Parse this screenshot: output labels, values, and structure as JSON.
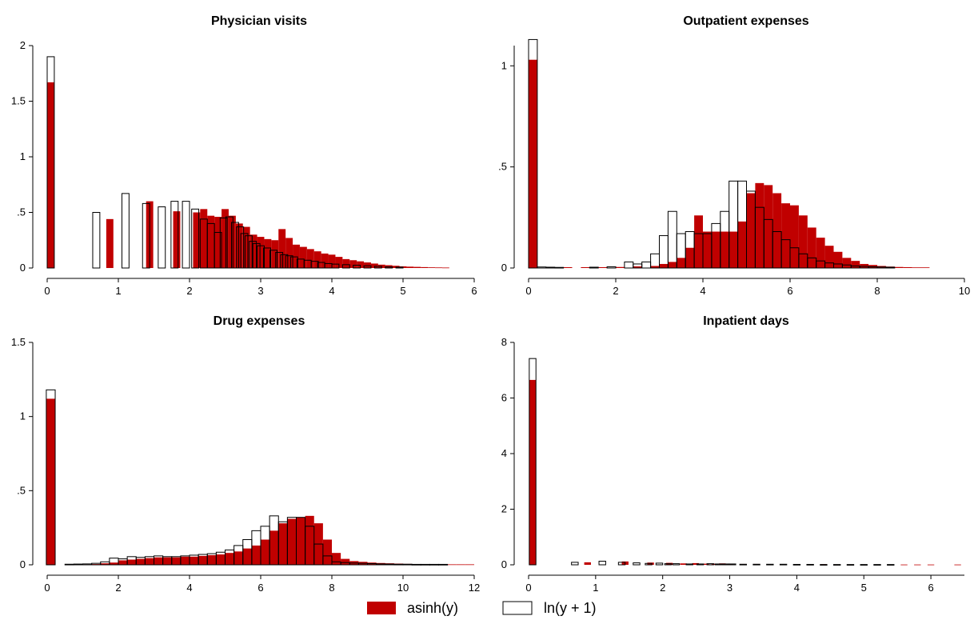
{
  "colors": {
    "asinh": "#c00000",
    "ln": "#ffffff",
    "outline": "#000000"
  },
  "legend": [
    {
      "key": "asinh",
      "label": "asinh(y)"
    },
    {
      "key": "ln",
      "label": "ln(y + 1)"
    }
  ],
  "chart_data": [
    {
      "type": "bar",
      "title": "Physician visits",
      "xlim": [
        0,
        6
      ],
      "ylim": [
        0,
        2
      ],
      "xticks": [
        0,
        1,
        2,
        3,
        4,
        5,
        6
      ],
      "yticks": [
        0,
        0.5,
        1,
        1.5,
        2
      ],
      "xtick_labels": [
        "0",
        "1",
        "2",
        "3",
        "4",
        "5",
        "6"
      ],
      "ytick_labels": [
        "0",
        ".5",
        "1",
        "1.5",
        "2"
      ],
      "series": [
        {
          "name": "asinh(y)",
          "bin_width": 0.1,
          "x": [
            0.05,
            0.88,
            1.44,
            1.82,
            2.1,
            2.2,
            2.3,
            2.4,
            2.5,
            2.6,
            2.7,
            2.8,
            2.9,
            3.0,
            3.1,
            3.2,
            3.3,
            3.4,
            3.5,
            3.6,
            3.7,
            3.8,
            3.9,
            4.0,
            4.1,
            4.2,
            4.3,
            4.4,
            4.5,
            4.6,
            4.7,
            4.8,
            4.9,
            5.0,
            5.1,
            5.2,
            5.3,
            5.4,
            5.5,
            5.6
          ],
          "y": [
            1.67,
            0.44,
            0.6,
            0.51,
            0.5,
            0.53,
            0.47,
            0.46,
            0.53,
            0.47,
            0.4,
            0.37,
            0.3,
            0.28,
            0.26,
            0.25,
            0.35,
            0.27,
            0.21,
            0.19,
            0.17,
            0.15,
            0.13,
            0.12,
            0.1,
            0.08,
            0.07,
            0.06,
            0.05,
            0.04,
            0.03,
            0.025,
            0.02,
            0.015,
            0.012,
            0.01,
            0.008,
            0.006,
            0.005,
            0.004
          ]
        },
        {
          "name": "ln(y + 1)",
          "bin_width": 0.1,
          "x": [
            0.05,
            0.69,
            1.1,
            1.39,
            1.61,
            1.79,
            1.95,
            2.08,
            2.2,
            2.3,
            2.4,
            2.48,
            2.56,
            2.64,
            2.71,
            2.77,
            2.83,
            2.89,
            2.94,
            3.0,
            3.09,
            3.18,
            3.26,
            3.33,
            3.4,
            3.47,
            3.56,
            3.66,
            3.76,
            3.85,
            3.95,
            4.05,
            4.2,
            4.35,
            4.5,
            4.65,
            4.8,
            4.95
          ],
          "y": [
            1.9,
            0.5,
            0.67,
            0.58,
            0.55,
            0.6,
            0.6,
            0.53,
            0.44,
            0.4,
            0.32,
            0.45,
            0.46,
            0.41,
            0.37,
            0.31,
            0.29,
            0.24,
            0.22,
            0.2,
            0.18,
            0.16,
            0.14,
            0.12,
            0.11,
            0.1,
            0.08,
            0.07,
            0.06,
            0.05,
            0.04,
            0.035,
            0.03,
            0.025,
            0.02,
            0.015,
            0.01,
            0.008
          ]
        }
      ]
    },
    {
      "type": "bar",
      "title": "Outpatient expenses",
      "xlim": [
        0,
        10
      ],
      "ylim": [
        0,
        1.1
      ],
      "xticks": [
        0,
        2,
        4,
        6,
        8,
        10
      ],
      "yticks": [
        0,
        0.5,
        1
      ],
      "xtick_labels": [
        "0",
        "2",
        "4",
        "6",
        "8",
        "10"
      ],
      "ytick_labels": [
        "0",
        ".5",
        "1"
      ],
      "series": [
        {
          "name": "asinh(y)",
          "bin_width": 0.2,
          "x": [
            0.1,
            0.5,
            0.9,
            1.3,
            1.7,
            2.1,
            2.5,
            2.9,
            3.1,
            3.3,
            3.5,
            3.7,
            3.9,
            4.1,
            4.3,
            4.5,
            4.7,
            4.9,
            5.1,
            5.3,
            5.5,
            5.7,
            5.9,
            6.1,
            6.3,
            6.5,
            6.7,
            6.9,
            7.1,
            7.3,
            7.5,
            7.7,
            7.9,
            8.1,
            8.3,
            8.5,
            8.7,
            8.9,
            9.1
          ],
          "y": [
            1.03,
            0.003,
            0.004,
            0.004,
            0.004,
            0.005,
            0.008,
            0.01,
            0.02,
            0.03,
            0.05,
            0.1,
            0.26,
            0.18,
            0.18,
            0.18,
            0.18,
            0.23,
            0.37,
            0.42,
            0.41,
            0.37,
            0.32,
            0.31,
            0.26,
            0.2,
            0.15,
            0.11,
            0.08,
            0.05,
            0.035,
            0.02,
            0.015,
            0.01,
            0.007,
            0.005,
            0.004,
            0.003,
            0.003
          ]
        },
        {
          "name": "ln(y + 1)",
          "bin_width": 0.2,
          "x": [
            0.1,
            0.3,
            0.5,
            0.7,
            1.5,
            1.9,
            2.3,
            2.5,
            2.7,
            2.9,
            3.1,
            3.3,
            3.5,
            3.7,
            3.9,
            4.1,
            4.3,
            4.5,
            4.7,
            4.9,
            5.1,
            5.3,
            5.5,
            5.7,
            5.9,
            6.1,
            6.3,
            6.5,
            6.7,
            6.9,
            7.1,
            7.3,
            7.5,
            7.7,
            7.9,
            8.1,
            8.3
          ],
          "y": [
            1.13,
            0.005,
            0.004,
            0.003,
            0.004,
            0.006,
            0.03,
            0.02,
            0.03,
            0.07,
            0.16,
            0.28,
            0.17,
            0.18,
            0.17,
            0.17,
            0.22,
            0.28,
            0.43,
            0.43,
            0.38,
            0.3,
            0.24,
            0.18,
            0.14,
            0.1,
            0.07,
            0.05,
            0.035,
            0.025,
            0.02,
            0.015,
            0.01,
            0.008,
            0.006,
            0.005,
            0.004
          ]
        }
      ]
    },
    {
      "type": "bar",
      "title": "Drug expenses",
      "xlim": [
        0,
        12
      ],
      "ylim": [
        0,
        1.5
      ],
      "xticks": [
        0,
        2,
        4,
        6,
        8,
        10,
        12
      ],
      "yticks": [
        0,
        0.5,
        1,
        1.5
      ],
      "xtick_labels": [
        "0",
        "2",
        "4",
        "6",
        "8",
        "10",
        "12"
      ],
      "ytick_labels": [
        "0",
        ".5",
        "1",
        "1.5"
      ],
      "series": [
        {
          "name": "asinh(y)",
          "bin_width": 0.25,
          "x": [
            0.1,
            1.125,
            1.375,
            1.625,
            1.875,
            2.125,
            2.375,
            2.625,
            2.875,
            3.125,
            3.375,
            3.625,
            3.875,
            4.125,
            4.375,
            4.625,
            4.875,
            5.125,
            5.375,
            5.625,
            5.875,
            6.125,
            6.375,
            6.625,
            6.875,
            7.125,
            7.375,
            7.625,
            7.875,
            8.125,
            8.375,
            8.625,
            8.875,
            9.125,
            9.375,
            9.625,
            9.875,
            10.125,
            10.375,
            10.625,
            10.875,
            11.125,
            11.375,
            11.625,
            11.875
          ],
          "y": [
            1.12,
            0.003,
            0.005,
            0.01,
            0.015,
            0.03,
            0.035,
            0.04,
            0.045,
            0.05,
            0.05,
            0.05,
            0.055,
            0.055,
            0.06,
            0.065,
            0.07,
            0.08,
            0.09,
            0.11,
            0.13,
            0.17,
            0.23,
            0.28,
            0.31,
            0.32,
            0.33,
            0.28,
            0.17,
            0.08,
            0.04,
            0.025,
            0.02,
            0.015,
            0.012,
            0.01,
            0.008,
            0.006,
            0.005,
            0.004,
            0.003,
            0.003,
            0.003,
            0.003,
            0.003
          ]
        },
        {
          "name": "ln(y + 1)",
          "bin_width": 0.25,
          "x": [
            0.1,
            0.625,
            0.875,
            1.125,
            1.375,
            1.625,
            1.875,
            2.125,
            2.375,
            2.625,
            2.875,
            3.125,
            3.375,
            3.625,
            3.875,
            4.125,
            4.375,
            4.625,
            4.875,
            5.125,
            5.375,
            5.625,
            5.875,
            6.125,
            6.375,
            6.625,
            6.875,
            7.125,
            7.375,
            7.625,
            7.875,
            8.125,
            8.375,
            8.625,
            8.875,
            9.125,
            9.375,
            9.625,
            9.875,
            10.125,
            10.375,
            10.625,
            10.875,
            11.125
          ],
          "y": [
            1.18,
            0.004,
            0.005,
            0.006,
            0.01,
            0.02,
            0.045,
            0.04,
            0.055,
            0.05,
            0.055,
            0.06,
            0.055,
            0.055,
            0.06,
            0.065,
            0.07,
            0.075,
            0.085,
            0.1,
            0.13,
            0.17,
            0.23,
            0.26,
            0.33,
            0.29,
            0.32,
            0.32,
            0.26,
            0.14,
            0.06,
            0.02,
            0.015,
            0.012,
            0.01,
            0.008,
            0.006,
            0.005,
            0.004,
            0.004,
            0.003,
            0.003,
            0.003,
            0.003
          ]
        }
      ]
    },
    {
      "type": "bar",
      "title": "Inpatient days",
      "xlim": [
        0,
        6.5
      ],
      "ylim": [
        0,
        8
      ],
      "xticks": [
        0,
        1,
        2,
        3,
        4,
        5,
        6
      ],
      "yticks": [
        0,
        2,
        4,
        6,
        8
      ],
      "xtick_labels": [
        "0",
        "1",
        "2",
        "3",
        "4",
        "5",
        "6"
      ],
      "ytick_labels": [
        "0",
        "2",
        "4",
        "6",
        "8"
      ],
      "series": [
        {
          "name": "asinh(y)",
          "bin_width": 0.1,
          "x": [
            0.06,
            0.88,
            1.44,
            1.82,
            2.1,
            2.31,
            2.49,
            2.64,
            2.78,
            2.89,
            3.0,
            3.2,
            3.4,
            3.6,
            3.8,
            4.0,
            4.2,
            4.4,
            4.6,
            4.8,
            5.0,
            5.2,
            5.4,
            5.6,
            5.8,
            6.0,
            6.4
          ],
          "y": [
            6.65,
            0.09,
            0.12,
            0.08,
            0.07,
            0.05,
            0.06,
            0.04,
            0.04,
            0.05,
            0.03,
            0.03,
            0.03,
            0.02,
            0.02,
            0.02,
            0.02,
            0.02,
            0.015,
            0.015,
            0.01,
            0.01,
            0.01,
            0.01,
            0.01,
            0.01,
            0.01
          ]
        },
        {
          "name": "ln(y + 1)",
          "bin_width": 0.1,
          "x": [
            0.06,
            0.69,
            1.1,
            1.39,
            1.61,
            1.79,
            1.95,
            2.08,
            2.2,
            2.4,
            2.56,
            2.71,
            2.83,
            2.94,
            3.04,
            3.2,
            3.4,
            3.6,
            3.8,
            4.0,
            4.2,
            4.4,
            4.6,
            4.8,
            5.0,
            5.2,
            5.4
          ],
          "y": [
            7.42,
            0.09,
            0.13,
            0.09,
            0.07,
            0.05,
            0.06,
            0.04,
            0.04,
            0.03,
            0.03,
            0.04,
            0.03,
            0.03,
            0.03,
            0.02,
            0.02,
            0.02,
            0.02,
            0.015,
            0.015,
            0.01,
            0.01,
            0.01,
            0.01,
            0.01,
            0.01
          ]
        }
      ]
    }
  ]
}
